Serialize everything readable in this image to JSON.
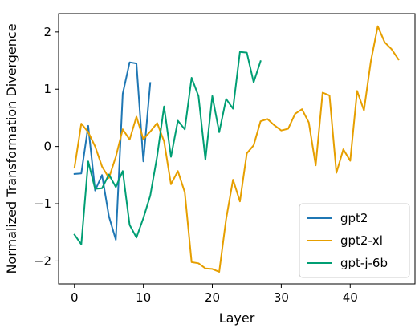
{
  "chart_data": {
    "type": "line",
    "xlabel": "Layer",
    "ylabel": "Normalized Transformation Divergence",
    "xlim": [
      -2.3,
      49.4
    ],
    "ylim": [
      -2.4,
      2.32
    ],
    "xticks": [
      0,
      10,
      20,
      30,
      40
    ],
    "yticks": [
      -2,
      -1,
      0,
      1,
      2
    ],
    "xtick_labels": [
      "0",
      "10",
      "20",
      "30",
      "40"
    ],
    "ytick_labels": [
      "−2",
      "−1",
      "0",
      "1",
      "2"
    ],
    "grid": false,
    "legend_position": "lower-right",
    "series": [
      {
        "name": "gpt2",
        "color": "#1f77b4",
        "x": [
          0,
          1,
          2,
          3,
          4,
          5,
          6,
          7,
          8,
          9,
          10,
          11
        ],
        "y": [
          -0.48,
          -0.47,
          0.36,
          -0.77,
          -0.5,
          -1.22,
          -1.63,
          0.92,
          1.47,
          1.45,
          -0.26,
          1.11
        ]
      },
      {
        "name": "gpt2-xl",
        "color": "#e69f00",
        "x": [
          0,
          1,
          2,
          3,
          4,
          5,
          6,
          7,
          8,
          9,
          10,
          11,
          12,
          13,
          14,
          15,
          16,
          17,
          18,
          19,
          20,
          21,
          22,
          23,
          24,
          25,
          26,
          27,
          28,
          29,
          30,
          31,
          32,
          33,
          34,
          35,
          36,
          37,
          38,
          39,
          40,
          41,
          42,
          43,
          44,
          45,
          46,
          47
        ],
        "y": [
          -0.37,
          0.4,
          0.25,
          0.0,
          -0.35,
          -0.55,
          -0.18,
          0.3,
          0.12,
          0.52,
          0.13,
          0.26,
          0.41,
          0.09,
          -0.66,
          -0.43,
          -0.8,
          -2.02,
          -2.04,
          -2.13,
          -2.14,
          -2.19,
          -1.27,
          -0.58,
          -0.96,
          -0.12,
          0.02,
          0.44,
          0.48,
          0.37,
          0.28,
          0.31,
          0.57,
          0.65,
          0.42,
          -0.33,
          0.94,
          0.89,
          -0.46,
          -0.05,
          -0.25,
          0.97,
          0.63,
          1.49,
          2.1,
          1.82,
          1.7,
          1.52
        ]
      },
      {
        "name": "gpt-j-6b",
        "color": "#009e73",
        "x": [
          0,
          1,
          2,
          3,
          4,
          5,
          6,
          7,
          8,
          9,
          10,
          11,
          12,
          13,
          14,
          15,
          16,
          17,
          18,
          19,
          20,
          21,
          22,
          23,
          24,
          25,
          26,
          27
        ],
        "y": [
          -1.54,
          -1.71,
          -0.26,
          -0.74,
          -0.73,
          -0.49,
          -0.71,
          -0.43,
          -1.37,
          -1.59,
          -1.25,
          -0.86,
          -0.17,
          0.7,
          -0.18,
          0.45,
          0.3,
          1.2,
          0.88,
          -0.23,
          0.88,
          0.25,
          0.83,
          0.66,
          1.65,
          1.64,
          1.12,
          1.49
        ]
      }
    ]
  }
}
